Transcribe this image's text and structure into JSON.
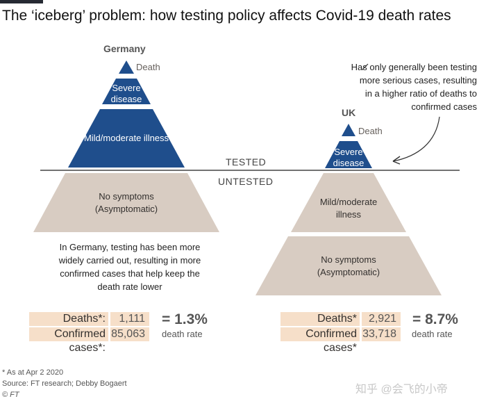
{
  "title": "The ‘iceberg’ problem: how testing policy affects Covid-19 death rates",
  "colors": {
    "tested": "#1f4e8c",
    "untested": "#d8ccc2",
    "stat_bg": "#f6dfc9",
    "divider": "#444444"
  },
  "divider": {
    "tested_label": "TESTED",
    "untested_label": "UNTESTED"
  },
  "germany": {
    "name": "Germany",
    "tiers": {
      "death": "Death",
      "severe": "Severe disease",
      "mild": "Mild/moderate illness",
      "none": "No symptoms (Asymptomatic)"
    },
    "note": "In Germany, testing has been more widely carried out, resulting in more confirmed cases that help keep the death rate lower",
    "deaths_label": "Deaths*:",
    "deaths_value": "1,111",
    "cases_label": "Confirmed cases*:",
    "cases_value": "85,063",
    "rate": "= 1.3%",
    "rate_label": "death rate"
  },
  "uk": {
    "name": "UK",
    "tiers": {
      "death": "Death",
      "severe": "Severe disease",
      "mild": "Mild/moderate illness",
      "none": "No symptoms (Asymptomatic)"
    },
    "annotation": "Has only generally been testing more serious cases, resulting in a higher ratio of deaths to confirmed cases",
    "deaths_label": "Deaths*",
    "deaths_value": "2,921",
    "cases_label": "Confirmed cases*",
    "cases_value": "33,718",
    "rate": "= 8.7%",
    "rate_label": "death rate"
  },
  "footer": {
    "note": "* As at Apr 2 2020",
    "source": "Source: FT research; Debby Bogaert",
    "credit": "© FT"
  },
  "watermark": "知乎 @会飞的小帝"
}
